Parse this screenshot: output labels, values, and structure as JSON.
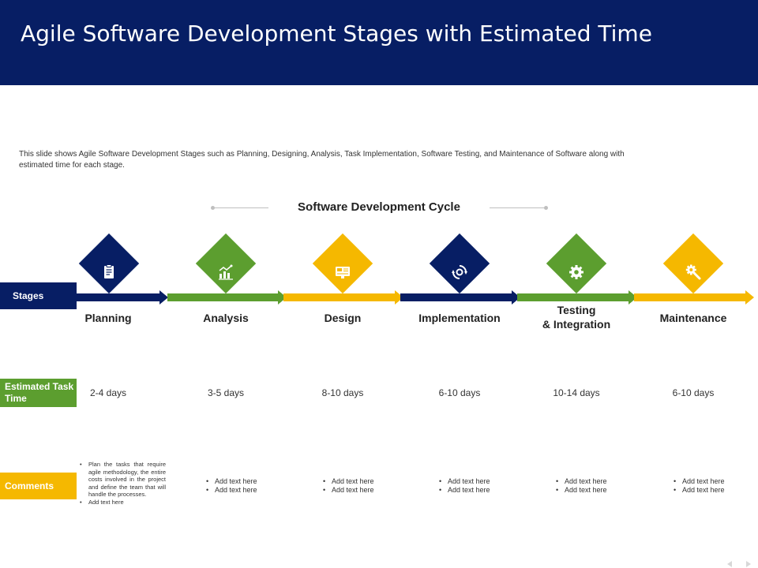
{
  "header": {
    "title": "Agile Software Development Stages with Estimated Time"
  },
  "description": "This slide shows Agile Software Development Stages such as Planning,  Designing,  Analysis, Task Implementation,  Software Testing, and Maintenance of Software along with estimated time  for each stage.",
  "cycle": {
    "title": "Software Development Cycle"
  },
  "rows": {
    "stages": "Stages",
    "time": "Estimated Task Time",
    "comments": "Comments"
  },
  "colors": {
    "navy": "#071e64",
    "green": "#5c9e2f",
    "yellow": "#f5b800"
  },
  "stages": [
    {
      "name": "Planning",
      "time": "2-4 days",
      "icon": "clipboard-icon",
      "color": "#071e64",
      "comments": [
        "Plan the tasks that require agile methodology,  the entire costs involved in the project and define the team that will handle the processes.",
        "Add text here"
      ]
    },
    {
      "name": "Analysis",
      "time": "3-5 days",
      "icon": "analysis-chart-icon",
      "color": "#5c9e2f",
      "comments": [
        "Add text here",
        "Add text here"
      ]
    },
    {
      "name": "Design",
      "time": "8-10 days",
      "icon": "design-monitor-icon",
      "color": "#f5b800",
      "comments": [
        "Add text here",
        "Add text here"
      ]
    },
    {
      "name": "Implementation",
      "time": "6-10 days",
      "icon": "cycle-gear-icon",
      "color": "#071e64",
      "comments": [
        "Add text here",
        "Add text here"
      ]
    },
    {
      "name_line1": "Testing",
      "name_line2": "& Integration",
      "time": "10-14 days",
      "icon": "settings-gear-icon",
      "color": "#5c9e2f",
      "comments": [
        "Add text here",
        "Add text here"
      ]
    },
    {
      "name": "Maintenance",
      "time": "6-10 days",
      "icon": "wrench-gear-icon",
      "color": "#f5b800",
      "comments": [
        "Add text here",
        "Add text here"
      ]
    }
  ]
}
